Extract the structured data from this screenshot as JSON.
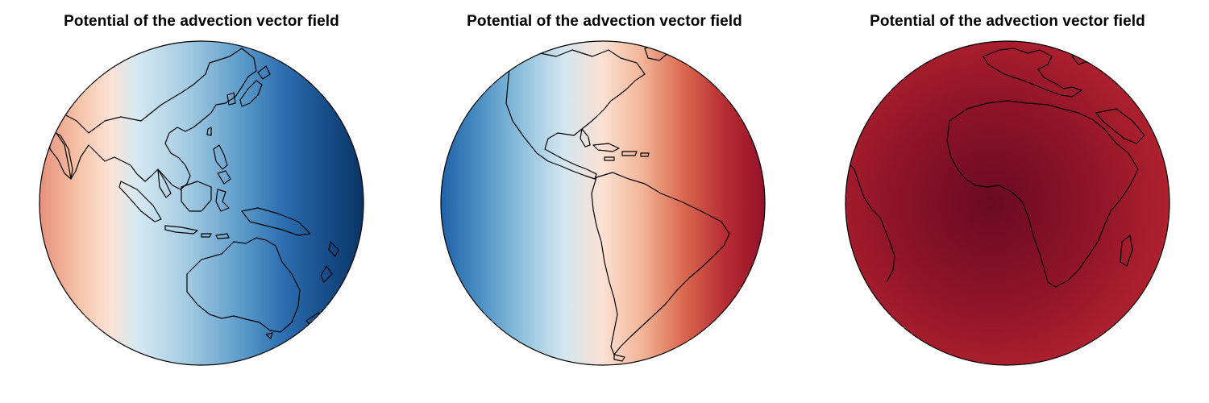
{
  "panels": [
    {
      "title": "Potential of the advection vector field",
      "view": "asia-pacific-hemisphere",
      "colormap": "RdBu"
    },
    {
      "title": "Potential of the advection vector field",
      "view": "americas-hemisphere",
      "colormap": "RdBu"
    },
    {
      "title": "Potential of the advection vector field",
      "view": "africa-hemisphere",
      "colormap": "RdBu"
    }
  ],
  "colors": {
    "dark_blue": "#053061",
    "mid_blue": "#2166ac",
    "light_blue": "#92c5de",
    "neutral": "#f7f7f7",
    "light_red": "#fddbc7",
    "mid_red": "#d6604d",
    "dark_red": "#67001f",
    "coastline": "#000000"
  }
}
